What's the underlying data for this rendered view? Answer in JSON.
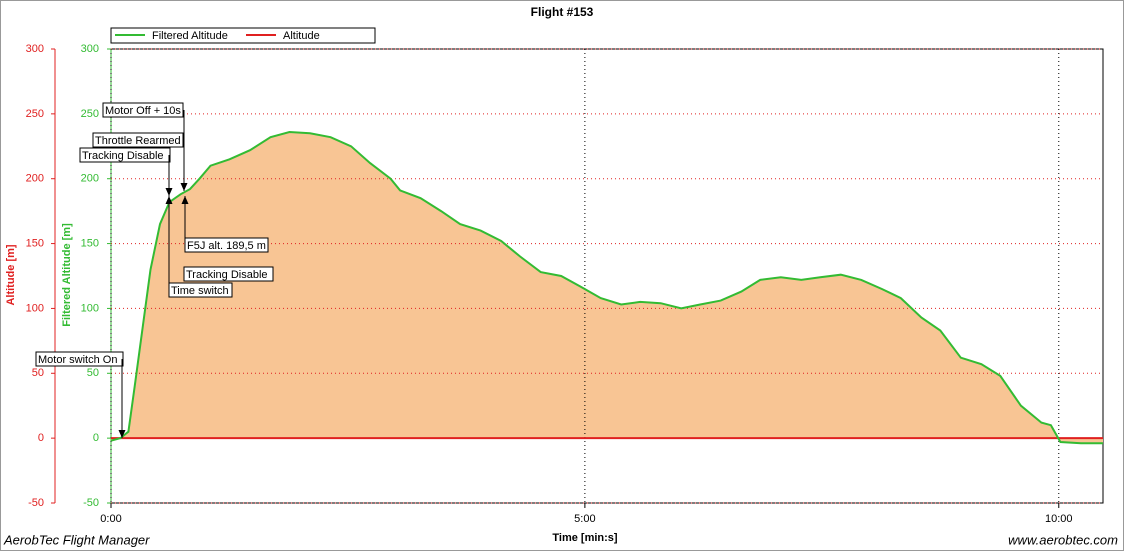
{
  "chart_data": {
    "type": "line",
    "title": "Flight #153",
    "xlabel": "Time [min:s]",
    "ylabel": "Altitude [m]",
    "y2label": "Filtered Altitude [m]",
    "xlim": [
      0,
      628
    ],
    "xticks": [
      {
        "value": 0,
        "label": "0:00"
      },
      {
        "value": 300,
        "label": "5:00"
      },
      {
        "value": 600,
        "label": "10:00"
      }
    ],
    "ylim": [
      -50,
      300
    ],
    "yticks": [
      -50,
      0,
      50,
      100,
      150,
      200,
      250,
      300
    ],
    "y2lim": [
      -50,
      300
    ],
    "y2ticks": [
      -50,
      0,
      50,
      100,
      150,
      200,
      250,
      300
    ],
    "grid": true,
    "legend": "top-left",
    "x": [
      0,
      6,
      11,
      15,
      20,
      25,
      31,
      37,
      44,
      50,
      56,
      63,
      75,
      88,
      101,
      113,
      126,
      139,
      152,
      164,
      177,
      183,
      196,
      209,
      221,
      234,
      247,
      259,
      272,
      285,
      297,
      310,
      323,
      335,
      348,
      361,
      373,
      386,
      399,
      411,
      424,
      437,
      449,
      462,
      475,
      488,
      500,
      513,
      525,
      538,
      551,
      563,
      576,
      589,
      595,
      601,
      614,
      628
    ],
    "series": [
      {
        "name": "Filtered Altitude",
        "color": "#33bb33",
        "fill": "#f8c594",
        "axis": "y2",
        "values": [
          -2,
          0,
          5,
          40,
          85,
          130,
          165,
          182,
          188,
          192,
          200,
          210,
          215,
          222,
          232,
          236,
          235,
          232,
          225,
          212,
          200,
          191,
          185,
          175,
          165,
          160,
          152,
          140,
          128,
          125,
          117,
          108,
          103,
          105,
          104,
          100,
          103,
          106,
          113,
          122,
          124,
          122,
          124,
          126,
          122,
          115,
          108,
          93,
          83,
          62,
          57,
          48,
          25,
          12,
          10,
          -3,
          -4,
          -4
        ]
      },
      {
        "name": "Altitude",
        "color": "#e02020",
        "values": [
          0,
          0,
          0,
          0,
          0,
          0,
          0,
          0,
          0,
          0,
          0,
          0,
          0,
          0,
          0,
          0,
          0,
          0,
          0,
          0,
          0,
          0,
          0,
          0,
          0,
          0,
          0,
          0,
          0,
          0,
          0,
          0,
          0,
          0,
          0,
          0,
          0,
          0,
          0,
          0,
          0,
          0,
          0,
          0,
          0,
          0,
          0,
          0,
          0,
          0,
          0,
          0,
          0,
          0,
          0,
          0,
          0,
          0
        ]
      }
    ],
    "annotations": [
      "Motor switch On",
      "Motor Off + 10s",
      "Throttle Rearmed",
      "Tracking Disable",
      "F5J alt. 189,5 m",
      "Tracking Disable",
      "Time switch"
    ]
  },
  "footer": {
    "left": "AerobTec Flight Manager",
    "right": "www.aerobtec.com"
  }
}
